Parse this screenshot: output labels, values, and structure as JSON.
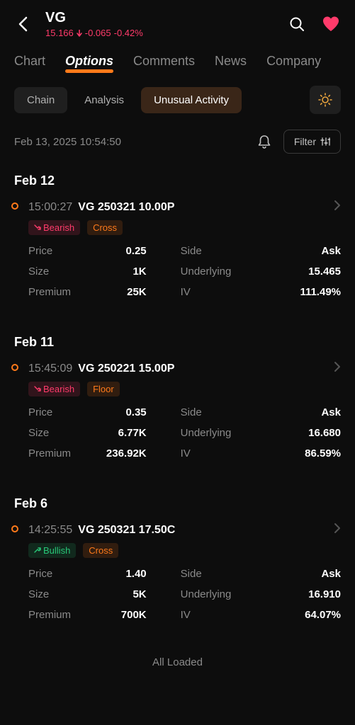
{
  "header": {
    "ticker": "VG",
    "price": "15.166",
    "change_abs": "-0.065",
    "change_pct": "-0.42%",
    "price_color": "#ff3b6b"
  },
  "main_tabs": [
    "Chart",
    "Options",
    "Comments",
    "News",
    "Company"
  ],
  "main_tab_active_index": 1,
  "sub_tabs": [
    "Chain",
    "Analysis",
    "Unusual Activity"
  ],
  "sub_tab_active_index": 2,
  "timestamp": "Feb 13, 2025 10:54:50",
  "filter_label": "Filter",
  "all_loaded": "All Loaded",
  "groups": [
    {
      "date": "Feb 12",
      "entries": [
        {
          "time": "15:00:27",
          "contract": "VG 250321 10.00P",
          "sentiment": "Bearish",
          "sentiment_type": "bearish",
          "flag": "Cross",
          "flag_type": "cross",
          "details": {
            "price_label": "Price",
            "price": "0.25",
            "side_label": "Side",
            "side": "Ask",
            "size_label": "Size",
            "size": "1K",
            "underlying_label": "Underlying",
            "underlying": "15.465",
            "premium_label": "Premium",
            "premium": "25K",
            "iv_label": "IV",
            "iv": "111.49%"
          }
        }
      ]
    },
    {
      "date": "Feb 11",
      "entries": [
        {
          "time": "15:45:09",
          "contract": "VG 250221 15.00P",
          "sentiment": "Bearish",
          "sentiment_type": "bearish",
          "flag": "Floor",
          "flag_type": "floor",
          "details": {
            "price_label": "Price",
            "price": "0.35",
            "side_label": "Side",
            "side": "Ask",
            "size_label": "Size",
            "size": "6.77K",
            "underlying_label": "Underlying",
            "underlying": "16.680",
            "premium_label": "Premium",
            "premium": "236.92K",
            "iv_label": "IV",
            "iv": "86.59%"
          }
        }
      ]
    },
    {
      "date": "Feb 6",
      "entries": [
        {
          "time": "14:25:55",
          "contract": "VG 250321 17.50C",
          "sentiment": "Bullish",
          "sentiment_type": "bullish",
          "flag": "Cross",
          "flag_type": "cross",
          "details": {
            "price_label": "Price",
            "price": "1.40",
            "side_label": "Side",
            "side": "Ask",
            "size_label": "Size",
            "size": "5K",
            "underlying_label": "Underlying",
            "underlying": "16.910",
            "premium_label": "Premium",
            "premium": "700K",
            "iv_label": "IV",
            "iv": "64.07%"
          }
        }
      ]
    }
  ]
}
